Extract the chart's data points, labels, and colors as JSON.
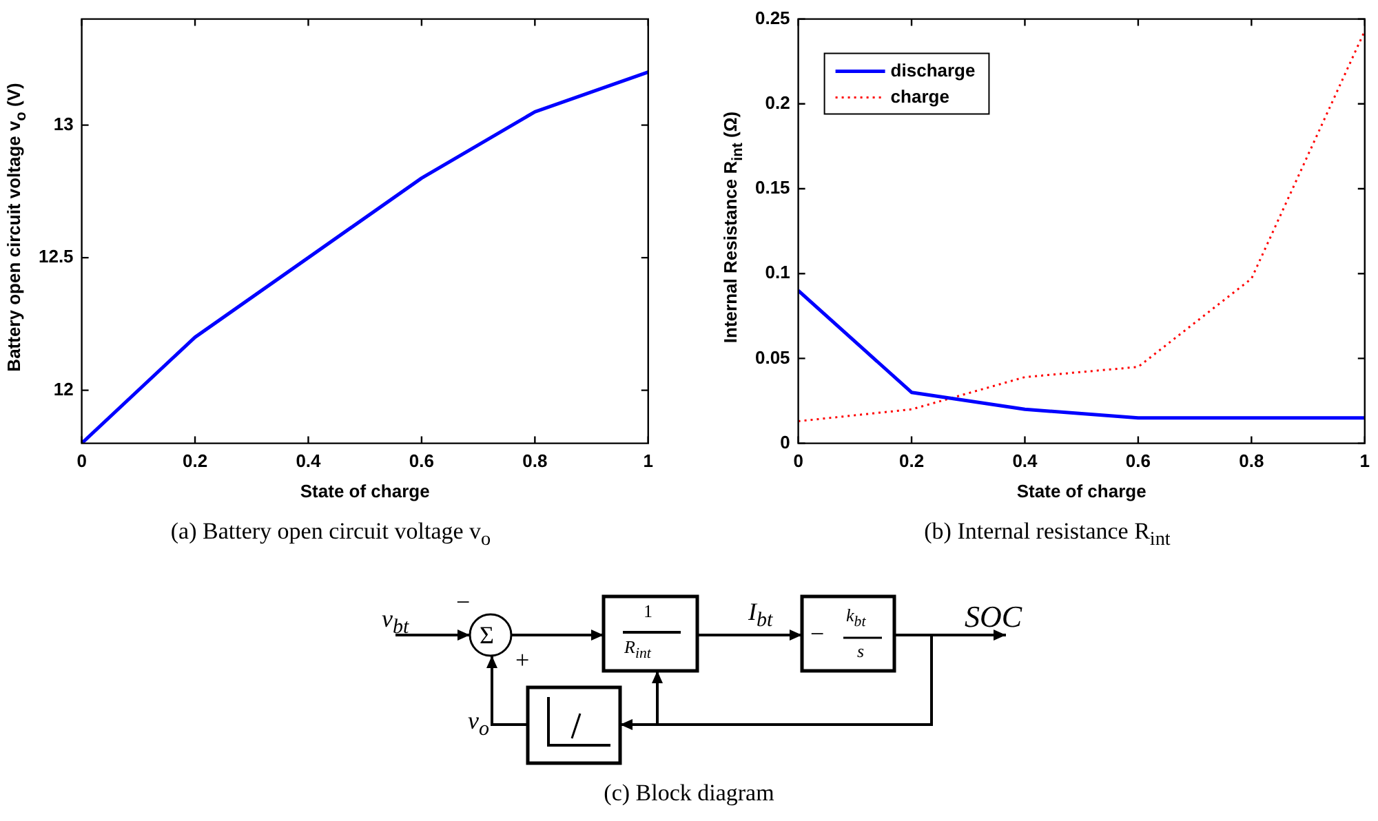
{
  "chart_data": [
    {
      "type": "line",
      "x": [
        0,
        0.2,
        0.4,
        0.6,
        0.8,
        1
      ],
      "xlabel": "State of charge",
      "ylabel": "Battery open circuit voltage v$_{o}$ (V)",
      "series": [
        {
          "color": "#0000ff",
          "values": [
            11.8,
            12.2,
            12.5,
            12.8,
            13.05,
            13.2
          ],
          "line_style": "solid"
        }
      ],
      "xlim": [
        0,
        1
      ],
      "xticks": [
        0,
        0.2,
        0.4,
        0.6,
        0.8,
        1
      ],
      "ylim": [
        11.8,
        13.4
      ],
      "yticks": [
        12,
        12.5,
        13
      ],
      "annotations": [
        "(a) Battery open circuit voltage v$_{o}$"
      ]
    },
    {
      "type": "line",
      "x": [
        0,
        0.2,
        0.4,
        0.6,
        0.8,
        1
      ],
      "xlabel": "State of charge",
      "ylabel": "Internal Resistance R$_{int}$ (Ω)",
      "series": [
        {
          "name": "discharge",
          "color": "#0000ff",
          "values": [
            0.09,
            0.03,
            0.02,
            0.015,
            0.015,
            0.015
          ],
          "line_style": "solid"
        },
        {
          "name": "charge",
          "color": "#ff0000",
          "values": [
            0.013,
            0.02,
            0.039,
            0.045,
            0.097,
            0.243
          ],
          "line_style": "dotted"
        }
      ],
      "xlim": [
        0,
        1
      ],
      "xticks": [
        0,
        0.2,
        0.4,
        0.6,
        0.8,
        1
      ],
      "ylim": [
        0,
        0.25
      ],
      "yticks": [
        0,
        0.05,
        0.1,
        0.15,
        0.2,
        0.25
      ],
      "legend": "top left",
      "annotations": [
        "(b) Internal resistance R$_{int}$"
      ]
    },
    {
      "type": "other",
      "annotations": [
        "v$_{bt}$",
        "−",
        "Σ",
        "+",
        "1",
        "R$_{int}$",
        "I$_{bt}$",
        "−",
        "k$_{bt}$",
        "s",
        "SOC",
        "v$_{o}$",
        "(c) Block diagram"
      ]
    }
  ]
}
